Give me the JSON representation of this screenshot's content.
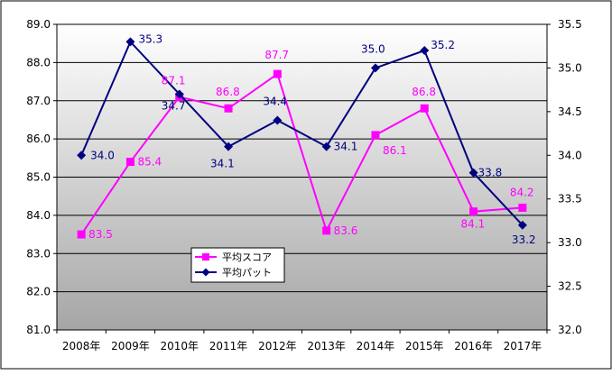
{
  "chart_data": {
    "type": "line",
    "categories": [
      "2008年",
      "2009年",
      "2010年",
      "2011年",
      "2012年",
      "2013年",
      "2014年",
      "2015年",
      "2016年",
      "2017年"
    ],
    "y_left": {
      "min": 81.0,
      "max": 89.0,
      "ticks": [
        "81.0",
        "82.0",
        "83.0",
        "84.0",
        "85.0",
        "86.0",
        "87.0",
        "88.0",
        "89.0"
      ]
    },
    "y_right": {
      "min": 32.0,
      "max": 35.5,
      "ticks": [
        "32.0",
        "32.5",
        "33.0",
        "33.5",
        "34.0",
        "34.5",
        "35.0",
        "35.5"
      ]
    },
    "series": [
      {
        "name": "平均スコア",
        "axis": "left",
        "color": "#ff00ff",
        "label_color": "#ff00ff",
        "marker": "square",
        "values": [
          83.5,
          85.4,
          87.1,
          86.8,
          87.7,
          83.6,
          86.1,
          86.8,
          84.1,
          84.2
        ],
        "labels": [
          "83.5",
          "85.4",
          "87.1",
          "86.8",
          "87.7",
          "83.6",
          "86.1",
          "86.8",
          "84.1",
          "84.2"
        ]
      },
      {
        "name": "平均パット",
        "axis": "right",
        "color": "#000080",
        "label_color": "#000080",
        "marker": "diamond",
        "values": [
          34.0,
          35.3,
          34.7,
          34.1,
          34.4,
          34.1,
          35.0,
          35.2,
          33.8,
          33.2
        ],
        "labels": [
          "34.0",
          "35.3",
          "34.7",
          "34.1",
          "34.4",
          "34.1",
          "35.0",
          "35.2",
          "33.8",
          "33.2"
        ]
      }
    ],
    "legend": {
      "placement": "inside-lower-left"
    },
    "grid": true,
    "background": "gradient white-to-gray"
  }
}
